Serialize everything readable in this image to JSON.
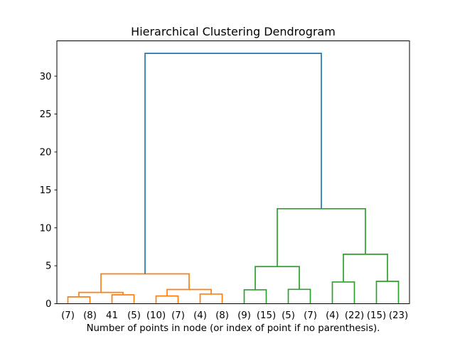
{
  "chart_data": {
    "type": "dendrogram",
    "title": "Hierarchical Clustering Dendrogram",
    "xlabel": "Number of points in node (or index of point if no parenthesis).",
    "ylabel": "",
    "grid": false,
    "legend": null,
    "xlim": [
      0,
      160
    ],
    "ylim": [
      0,
      34.65
    ],
    "yticks": [
      0,
      5,
      10,
      15,
      20,
      25,
      30
    ],
    "leaf_labels": [
      "(7)",
      "(8)",
      "41",
      "(5)",
      "(10)",
      "(7)",
      "(4)",
      "(8)",
      "(9)",
      "(15)",
      "(5)",
      "(7)",
      "(4)",
      "(22)",
      "(15)",
      "(23)"
    ],
    "leaf_positions": [
      5,
      15,
      25,
      35,
      45,
      55,
      65,
      75,
      85,
      95,
      105,
      115,
      125,
      135,
      145,
      155
    ],
    "colors": {
      "cluster1": "#ff7f0e",
      "cluster2": "#2ca02c",
      "root": "#1f77b4",
      "axis": "#000000",
      "background": "#ffffff"
    },
    "links": [
      {
        "x1": 5,
        "x2": 15,
        "h1": 0,
        "h2": 0,
        "h": 0.9,
        "color": "#ff7f0e"
      },
      {
        "x1": 25,
        "x2": 35,
        "h1": 0,
        "h2": 0,
        "h": 1.17,
        "color": "#ff7f0e"
      },
      {
        "x1": 10,
        "x2": 30,
        "h1": 0.9,
        "h2": 1.17,
        "h": 1.49,
        "color": "#ff7f0e"
      },
      {
        "x1": 45,
        "x2": 55,
        "h1": 0,
        "h2": 0,
        "h": 1.02,
        "color": "#ff7f0e"
      },
      {
        "x1": 65,
        "x2": 75,
        "h1": 0,
        "h2": 0,
        "h": 1.27,
        "color": "#ff7f0e"
      },
      {
        "x1": 50,
        "x2": 70,
        "h1": 1.02,
        "h2": 1.27,
        "h": 1.87,
        "color": "#ff7f0e"
      },
      {
        "x1": 20,
        "x2": 60,
        "h1": 1.49,
        "h2": 1.87,
        "h": 3.93,
        "color": "#ff7f0e"
      },
      {
        "x1": 85,
        "x2": 95,
        "h1": 0,
        "h2": 0,
        "h": 1.83,
        "color": "#2ca02c"
      },
      {
        "x1": 105,
        "x2": 115,
        "h1": 0,
        "h2": 0,
        "h": 1.89,
        "color": "#2ca02c"
      },
      {
        "x1": 90,
        "x2": 110,
        "h1": 1.83,
        "h2": 1.89,
        "h": 4.89,
        "color": "#2ca02c"
      },
      {
        "x1": 125,
        "x2": 135,
        "h1": 0,
        "h2": 0,
        "h": 2.86,
        "color": "#2ca02c"
      },
      {
        "x1": 145,
        "x2": 155,
        "h1": 0,
        "h2": 0,
        "h": 2.95,
        "color": "#2ca02c"
      },
      {
        "x1": 130,
        "x2": 150,
        "h1": 2.86,
        "h2": 2.95,
        "h": 6.52,
        "color": "#2ca02c"
      },
      {
        "x1": 100,
        "x2": 140,
        "h1": 4.89,
        "h2": 6.52,
        "h": 12.52,
        "color": "#2ca02c"
      },
      {
        "x1": 40,
        "x2": 120,
        "h1": 3.93,
        "h2": 12.52,
        "h": 33.0,
        "color": "#1f77b4"
      }
    ]
  }
}
